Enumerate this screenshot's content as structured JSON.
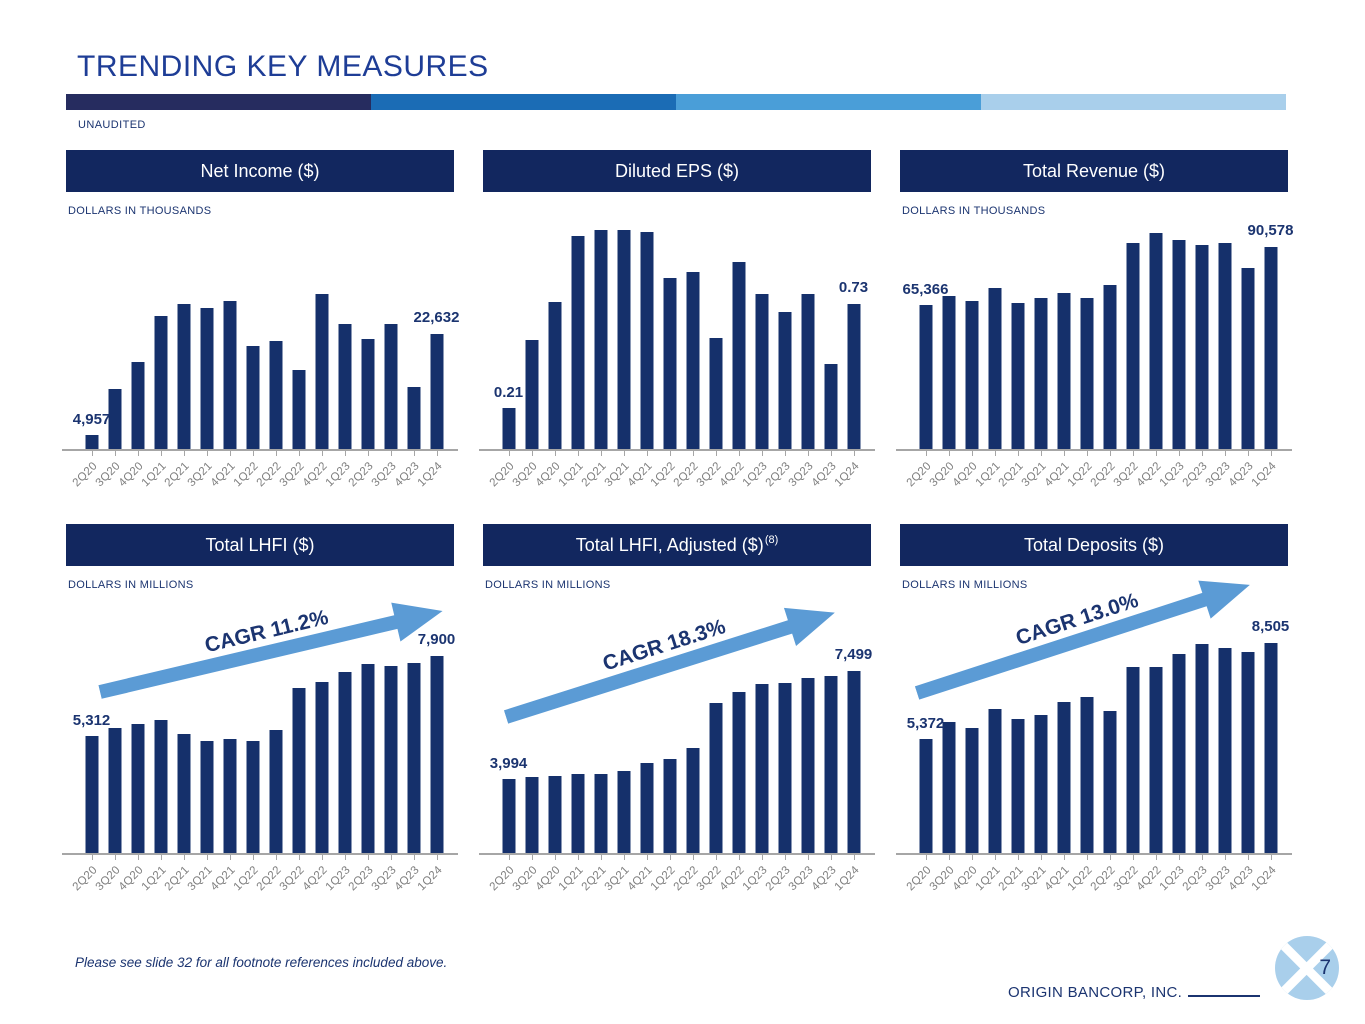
{
  "slide": {
    "title": "TRENDING KEY MEASURES",
    "status_label": "UNAUDITED",
    "footnote": "Please see slide 32 for all footnote references included above.",
    "company_name": "ORIGIN BANCORP, INC.",
    "page_number": "7",
    "accent_colors": [
      "#262c5f",
      "#1b6cb5",
      "#4a9ed8",
      "#a9cfeb"
    ]
  },
  "colors": {
    "bar": "#15306b",
    "header_bg": "#12275f",
    "header_text": "#ffffff",
    "title_text": "#1e3d96",
    "navy_text": "#1b3470",
    "axis": "#a6a6a6",
    "tick_label": "#7f7f7f",
    "arrow": "#5b9bd5",
    "logo_fill": "#a9cfeb"
  },
  "categories": [
    "2Q20",
    "3Q20",
    "4Q20",
    "1Q21",
    "2Q21",
    "3Q21",
    "4Q21",
    "1Q22",
    "2Q22",
    "3Q22",
    "4Q22",
    "1Q23",
    "2Q23",
    "3Q23",
    "4Q23",
    "1Q24"
  ],
  "chart_data": [
    {
      "type": "bar",
      "title": "Net Income ($)",
      "units_label": "DOLLARS IN THOUSANDS",
      "first_label": "4,957",
      "last_label": "22,632",
      "values": [
        4957,
        13100,
        17700,
        25700,
        27750,
        27100,
        28300,
        20600,
        21400,
        16300,
        29500,
        24300,
        21800,
        24300,
        13300,
        22632
      ],
      "ylim": [
        2400,
        40700
      ],
      "grid": "off",
      "legend": "none"
    },
    {
      "type": "bar",
      "title": "Diluted EPS ($)",
      "units_label": "",
      "first_label": "0.21",
      "last_label": "0.73",
      "values": [
        0.21,
        0.55,
        0.74,
        1.07,
        1.1,
        1.1,
        1.09,
        0.86,
        0.89,
        0.56,
        0.94,
        0.78,
        0.69,
        0.78,
        0.43,
        0.73
      ],
      "ylim": [
        0,
        1.1
      ],
      "grid": "off",
      "legend": "none"
    },
    {
      "type": "bar",
      "title": "Total Revenue ($)",
      "units_label": "DOLLARS IN THOUSANDS",
      "first_label": "65,366",
      "last_label": "90,578",
      "values": [
        65366,
        69000,
        67000,
        72500,
        66200,
        68300,
        70600,
        68100,
        73800,
        92100,
        96500,
        93600,
        91300,
        92200,
        81300,
        90578
      ],
      "ylim": [
        2200,
        97800
      ],
      "grid": "off",
      "legend": "none"
    },
    {
      "type": "bar",
      "title": "Total LHFI ($)",
      "units_label": "DOLLARS IN MILLIONS",
      "cagr_label": "CAGR 11.2%",
      "first_label": "5,312",
      "last_label": "7,900",
      "values": [
        5312,
        5580,
        5720,
        5830,
        5390,
        5170,
        5230,
        5150,
        5500,
        6870,
        7060,
        7380,
        7630,
        7570,
        7660,
        7900
      ],
      "ylim": [
        1500,
        8450
      ],
      "grid": "off",
      "legend": "none"
    },
    {
      "type": "bar",
      "title": "Total LHFI, Adjusted ($)",
      "title_superscript": "(8)",
      "units_label": "DOLLARS IN MILLIONS",
      "cagr_label": "CAGR 18.3%",
      "first_label": "3,994",
      "last_label": "7,499",
      "values": [
        3994,
        4060,
        4100,
        4150,
        4140,
        4240,
        4520,
        4650,
        4980,
        6440,
        6800,
        7050,
        7090,
        7270,
        7330,
        7499
      ],
      "ylim": [
        1560,
        8520
      ],
      "grid": "off",
      "legend": "none"
    },
    {
      "type": "bar",
      "title": "Total Deposits ($)",
      "units_label": "DOLLARS IN MILLIONS",
      "cagr_label": "CAGR 13.0%",
      "first_label": "5,372",
      "last_label": "8,505",
      "values": [
        5372,
        5940,
        5730,
        6340,
        6010,
        6150,
        6580,
        6750,
        6300,
        7730,
        7730,
        8140,
        8470,
        8340,
        8200,
        8505
      ],
      "ylim": [
        1620,
        8630
      ],
      "grid": "off",
      "legend": "none"
    }
  ]
}
